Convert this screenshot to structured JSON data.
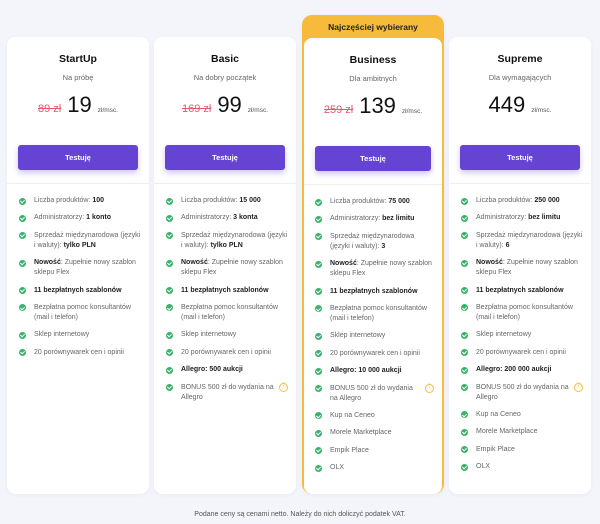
{
  "plans": [
    {
      "name": "StartUp",
      "tagline": "Na próbę",
      "old_price": "89 zł",
      "price": "19",
      "unit": "zł/msc.",
      "button": "Testuję",
      "features": [
        [
          [
            "Liczba produktów: ",
            0
          ],
          [
            "100",
            1
          ]
        ],
        [
          [
            "Administratorzy: ",
            0
          ],
          [
            "1 konto",
            1
          ]
        ],
        [
          [
            "Sprzedaż międzynarodowa (języki i waluty): ",
            0
          ],
          [
            "tylko PLN",
            1
          ]
        ],
        [
          [
            "Nowość",
            1
          ],
          [
            ": Zupełnie nowy szablon sklepu Flex",
            0
          ]
        ],
        [
          [
            "11 bezpłatnych szablonów",
            1
          ]
        ],
        [
          [
            "Bezpłatna pomoc konsultantów (mail i telefon)",
            0
          ]
        ],
        [
          [
            "Sklep internetowy",
            0
          ]
        ],
        [
          [
            "20 porównywarek cen i opinii",
            0
          ]
        ]
      ]
    },
    {
      "name": "Basic",
      "tagline": "Na dobry początek",
      "old_price": "169 zł",
      "price": "99",
      "unit": "zł/msc.",
      "button": "Testuję",
      "features": [
        [
          [
            "Liczba produktów: ",
            0
          ],
          [
            "15 000",
            1
          ]
        ],
        [
          [
            "Administratorzy: ",
            0
          ],
          [
            "3 konta",
            1
          ]
        ],
        [
          [
            "Sprzedaż międzynarodowa (języki i waluty): ",
            0
          ],
          [
            "tylko PLN",
            1
          ]
        ],
        [
          [
            "Nowość",
            1
          ],
          [
            ": Zupełnie nowy szablon sklepu Flex",
            0
          ]
        ],
        [
          [
            "11 bezpłatnych szablonów",
            1
          ]
        ],
        [
          [
            "Bezpłatna pomoc konsultantów (mail i telefon)",
            0
          ]
        ],
        [
          [
            "Sklep internetowy",
            0
          ]
        ],
        [
          [
            "20 porównywarek cen i opinii",
            0
          ]
        ],
        [
          [
            "Allegro: 500 aukcji",
            1
          ]
        ],
        [
          [
            "BONUS 500 zł do wydania na Allegro",
            0,
            "info"
          ]
        ]
      ]
    },
    {
      "ribbon": "Najczęściej wybierany",
      "name": "Business",
      "tagline": "Dla ambitnych",
      "old_price": "259 zł",
      "price": "139",
      "unit": "zł/msc.",
      "button": "Testuję",
      "features": [
        [
          [
            "Liczba produktów: ",
            0
          ],
          [
            "75 000",
            1
          ]
        ],
        [
          [
            "Administratorzy: ",
            0
          ],
          [
            "bez limitu",
            1
          ]
        ],
        [
          [
            "Sprzedaż międzynarodowa (języki i waluty): ",
            0
          ],
          [
            "3",
            1
          ]
        ],
        [
          [
            "Nowość",
            1
          ],
          [
            ": Zupełnie nowy szablon sklepu Flex",
            0
          ]
        ],
        [
          [
            "11 bezpłatnych szablonów",
            1
          ]
        ],
        [
          [
            "Bezpłatna pomoc konsultantów (mail i telefon)",
            0
          ]
        ],
        [
          [
            "Sklep internetowy",
            0
          ]
        ],
        [
          [
            "20 porównywarek cen i opinii",
            0
          ]
        ],
        [
          [
            "Allegro: 10 000 aukcji",
            1
          ]
        ],
        [
          [
            "BONUS 500 zł do wydania na Allegro",
            0,
            "info"
          ]
        ],
        [
          [
            "Kup na Ceneo",
            0
          ]
        ],
        [
          [
            "Morele Marketplace",
            0
          ]
        ],
        [
          [
            "Empik Place",
            0
          ]
        ],
        [
          [
            "OLX",
            0
          ]
        ]
      ]
    },
    {
      "name": "Supreme",
      "tagline": "Dla wymagających",
      "old_price": "",
      "price": "449",
      "unit": "zł/msc.",
      "button": "Testuję",
      "features": [
        [
          [
            "Liczba produktów: ",
            0
          ],
          [
            "250 000",
            1
          ]
        ],
        [
          [
            "Administratorzy: ",
            0
          ],
          [
            "bez limitu",
            1
          ]
        ],
        [
          [
            "Sprzedaż międzynarodowa (języki i waluty): ",
            0
          ],
          [
            "6",
            1
          ]
        ],
        [
          [
            "Nowość",
            1
          ],
          [
            ": Zupełnie nowy szablon sklepu Flex",
            0
          ]
        ],
        [
          [
            "11 bezpłatnych szablonów",
            1
          ]
        ],
        [
          [
            "Bezpłatna pomoc konsultantów (mail i telefon)",
            0
          ]
        ],
        [
          [
            "Sklep internetowy",
            0
          ]
        ],
        [
          [
            "20 porównywarek cen i opinii",
            0
          ]
        ],
        [
          [
            "Allegro: 200 000 aukcji",
            1
          ]
        ],
        [
          [
            "BONUS 500 zł do wydania na Allegro",
            0,
            "info"
          ]
        ],
        [
          [
            "Kup na Ceneo",
            0
          ]
        ],
        [
          [
            "Morele Marketplace",
            0
          ]
        ],
        [
          [
            "Empik Place",
            0
          ]
        ],
        [
          [
            "OLX",
            0
          ]
        ]
      ]
    }
  ],
  "info_icon": "ⓘ",
  "colors": {
    "accent": "#6544d3",
    "highlight": "#f6bb3a",
    "check": "#39b26a",
    "old_price": "#e05a6a"
  },
  "footer": "Podane ceny są cenami netto. Należy do nich doliczyć podatek VAT."
}
